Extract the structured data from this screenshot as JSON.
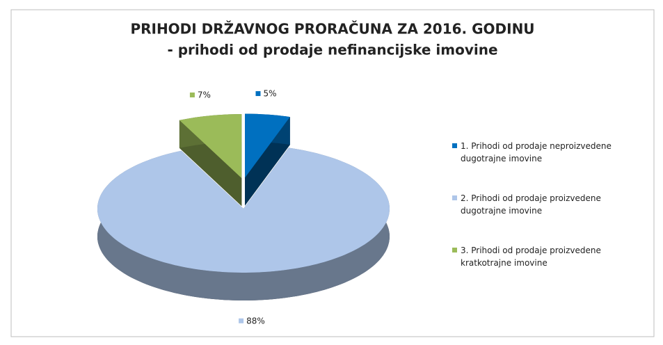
{
  "chart_data": {
    "type": "pie",
    "title": "PRIHODI DRŽAVNOG PRORAČUNA ZA 2016. GODINU",
    "subtitle": "- prihodi od prodaje nefinancijske imovine",
    "categories": [
      "1. Prihodi od prodaje neproizvedene dugotrajne imovine",
      "2. Prihodi od prodaje proizvedene dugotrajne imovine",
      "3. Prihodi od prodaje proizvedene kratkotrajne imovine"
    ],
    "values": [
      5,
      88,
      7
    ],
    "value_labels": [
      "5%",
      "88%",
      "7%"
    ],
    "colors": [
      "#0070c0",
      "#aec6e9",
      "#9bbb59"
    ],
    "legend": "right"
  }
}
